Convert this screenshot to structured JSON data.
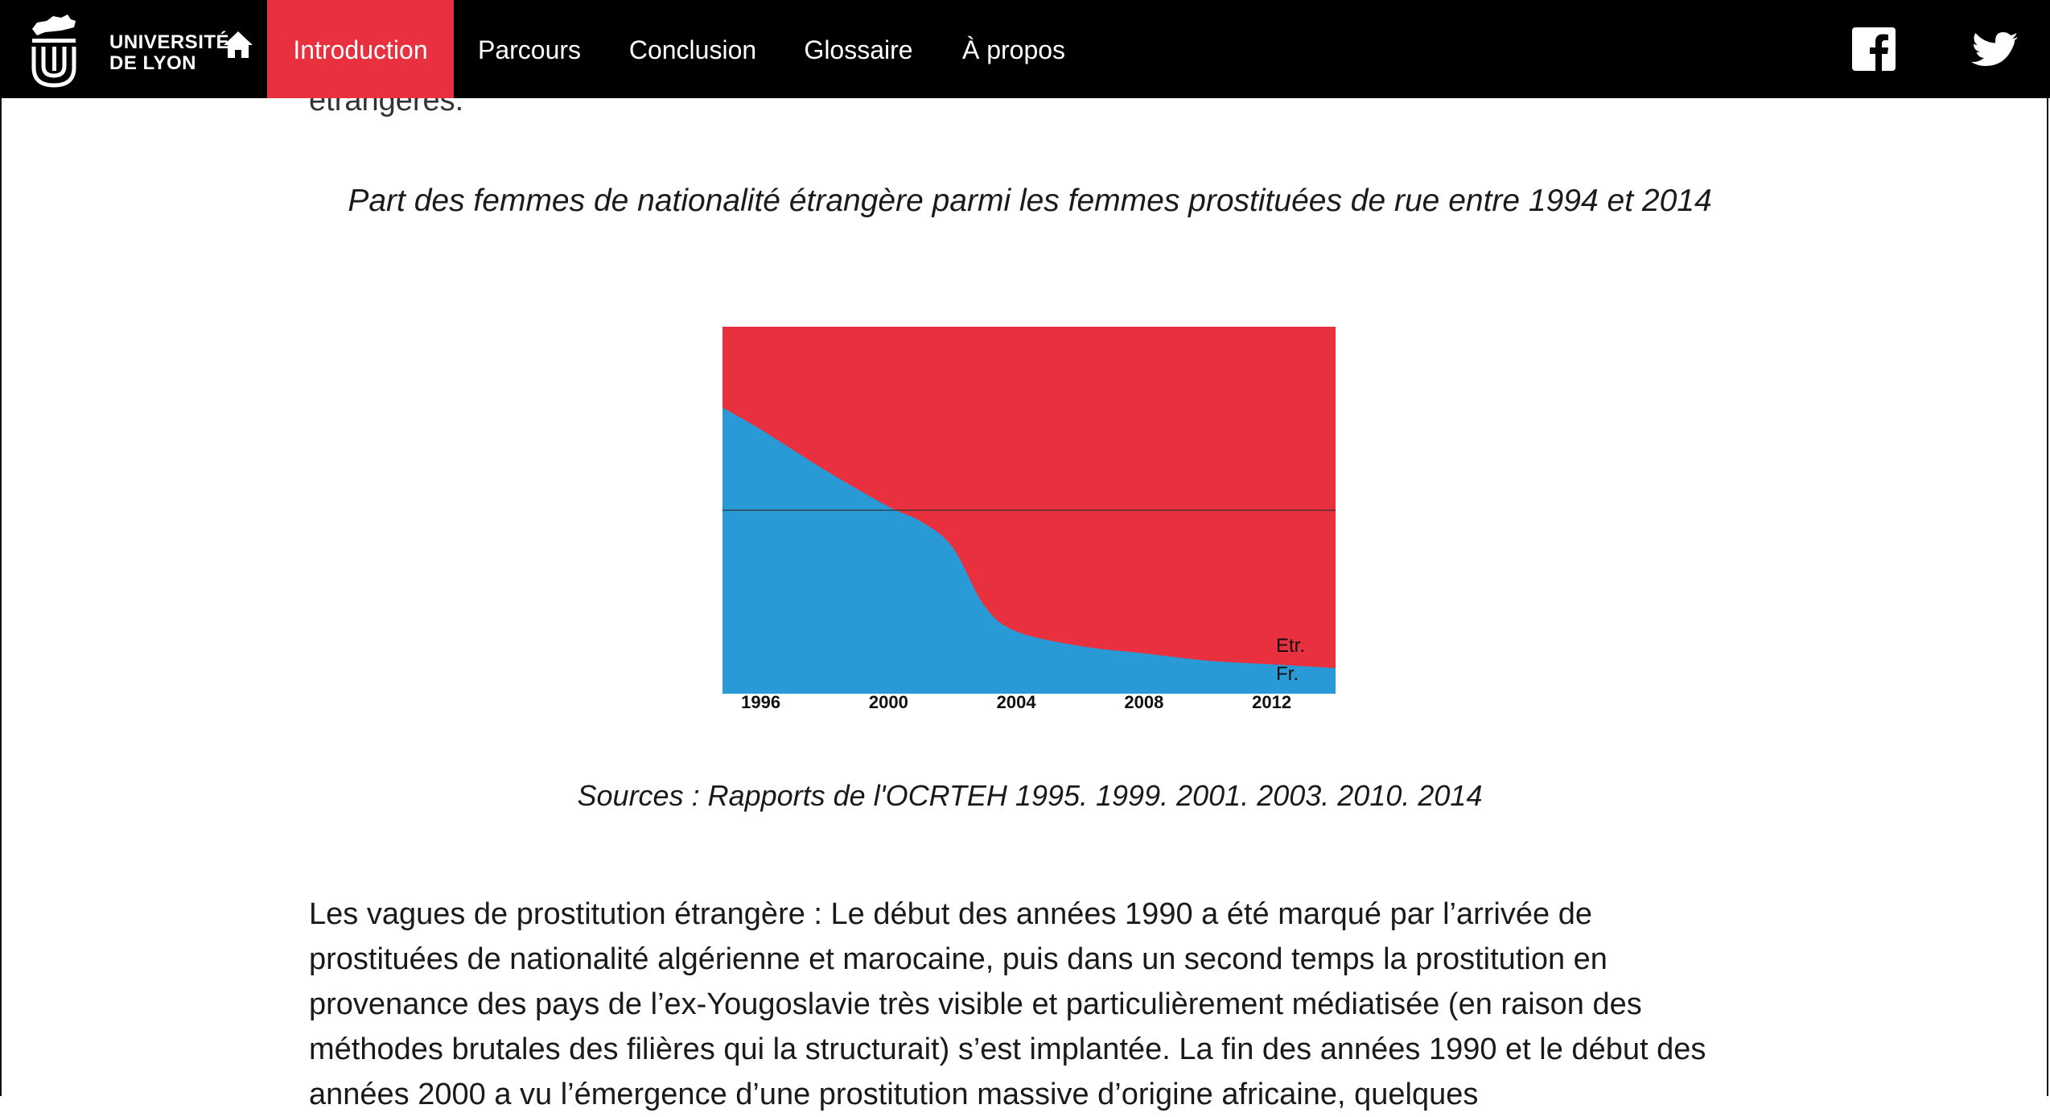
{
  "nav": {
    "logo_line1": "UNIVERSITÉ",
    "logo_line2": "DE LYON",
    "items": [
      "Introduction",
      "Parcours",
      "Conclusion",
      "Glossaire",
      "À propos"
    ],
    "active_index": 0,
    "accent_color": "#e8303e",
    "icons": [
      "home-icon",
      "facebook-icon",
      "twitter-icon"
    ]
  },
  "content": {
    "partial_text": "étrangères.",
    "sources": "Sources : Rapports de l'OCRTEH 1995. 1999. 2001. 2003. 2010. 2014",
    "paragraph": "Les vagues de prostitution étrangère : Le début des années 1990 a été marqué par l’arrivée de prostituées de nationalité algérienne et marocaine, puis dans un second temps la prostitution en provenance des pays de l’ex-Yougoslavie très visible et particulièrement médiatisée (en raison des méthodes brutales des filières qui la structurait) s’est implantée. La fin des années 1990 et le début des années 2000 a vu l’émergence d’une prostitution massive d’origine africaine, quelques"
  },
  "chart_data": {
    "type": "area",
    "title": "Part des femmes de nationalité étrangère parmi les femmes prostituées de rue entre 1994 et 2014",
    "x_ticks": [
      1996,
      2000,
      2004,
      2008,
      2012
    ],
    "x_range": [
      1994.8,
      2014
    ],
    "ylim": [
      0,
      100
    ],
    "reference_line": 50,
    "series": [
      {
        "name": "Fr.",
        "color": "#2a9ad6",
        "x": [
          1994.8,
          1996,
          1998,
          2000,
          2001,
          2002,
          2003,
          2004,
          2006,
          2008,
          2010,
          2012,
          2014
        ],
        "values": [
          78,
          72,
          61,
          51,
          47,
          40,
          24,
          17,
          13,
          11,
          9,
          8,
          7
        ]
      },
      {
        "name": "Etr.",
        "color": "#e8303e",
        "x": [
          1994.8,
          1996,
          1998,
          2000,
          2001,
          2002,
          2003,
          2004,
          2006,
          2008,
          2010,
          2012,
          2014
        ],
        "values": [
          22,
          28,
          39,
          49,
          53,
          60,
          76,
          83,
          87,
          89,
          91,
          92,
          93
        ]
      }
    ]
  }
}
